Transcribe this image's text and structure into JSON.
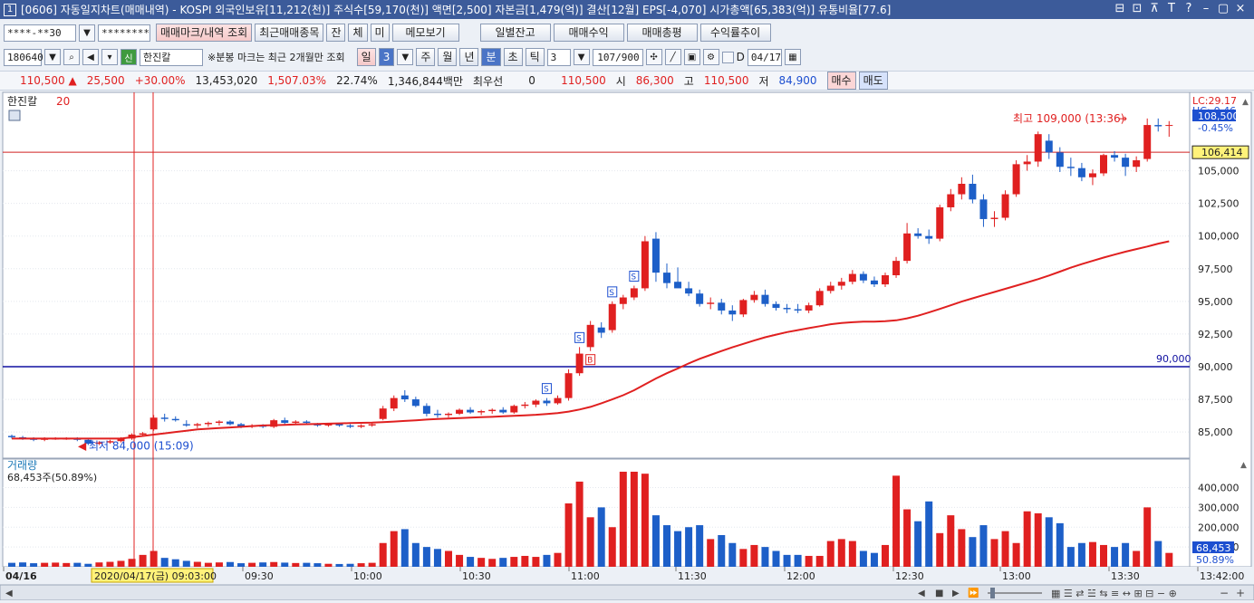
{
  "title": "[0606] 자동일지차트(매매내역) - KOSPI 외국인보유[11,212(천)] 주식수[59,170(천)] 액면[2,500] 자본금[1,479(억)] 결산[12월] EPS[-4,070] 시가총액[65,383(억)] 유통비율[77.6]",
  "window_num": "1",
  "window_controls": [
    "⊟",
    "⊡",
    "⊼",
    "T",
    "?",
    "–",
    "▢",
    "×"
  ],
  "toolbar1": {
    "account": "****-**30",
    "password": "********",
    "buttons": [
      "매매마크/내역 조회",
      "최근매매종목",
      "잔",
      "체",
      "미",
      "메모보기",
      "일별잔고",
      "매매수익",
      "매매총평",
      "수익률추이"
    ]
  },
  "toolbar2": {
    "code": "180640",
    "stock_badge": "신",
    "stock_name": "한진칼",
    "note": "※분봉 마크는 최근 2개월만 조회",
    "period_buttons": [
      "일",
      "3",
      "주",
      "월",
      "년",
      "분",
      "초",
      "틱"
    ],
    "minute_value": "3",
    "count": "107",
    "count_max": "/900",
    "date_label": "D",
    "date": "04/17"
  },
  "quote": {
    "price": "110,500",
    "change": "25,500",
    "change_pct": "+30.00%",
    "volume": "13,453,020",
    "vol_ratio": "1,507.03%",
    "turnover": "22.74%",
    "amount": "1,346,844백만",
    "best_label": "최우선",
    "best_qty": "0",
    "best_price": "110,500",
    "open_label": "시",
    "open": "86,300",
    "high_label": "고",
    "high": "110,500",
    "low_label": "저",
    "low": "84,900",
    "buy": "매수",
    "sell": "매도"
  },
  "chart_data": {
    "type": "candlestick",
    "stock_legend": "한진칼",
    "ma_period": "20",
    "lc": "LC:29.17",
    "hc": "HC:-0.46",
    "price_axis": [
      "105,000",
      "102,500",
      "100,000",
      "97,500",
      "95,000",
      "92,500",
      "90,000",
      "87,500",
      "85,000"
    ],
    "ylim": [
      83000,
      111000
    ],
    "current_price_label": "108,500",
    "current_pct_label": "-0.45%",
    "hline_red_label": "106,414",
    "hline_red_value": 106414,
    "hline_blue_label": "90,000",
    "hline_blue_value": 90000,
    "high_annot": "최고 109,000 (13:36)",
    "low_annot": "최저 84,000 (15:09)",
    "time_axis": [
      "04/16",
      "2020/04/17(금) 09:03:00",
      "09:30",
      "10:00",
      "10:30",
      "11:00",
      "11:30",
      "12:00",
      "12:30",
      "13:00",
      "13:30",
      "13:42:00"
    ],
    "volume_title": "거래량",
    "volume_sub": "68,453주(50.89%)",
    "volume_axis": [
      "400,000",
      "300,000",
      "200,000",
      "100,000"
    ],
    "volume_current_label": "68,453",
    "volume_pct_label": "50.89%",
    "trade_marks": [
      "S",
      "S",
      "S",
      "S",
      "B"
    ],
    "candles": [
      [
        84700,
        84800,
        84500,
        84600
      ],
      [
        84600,
        84700,
        84400,
        84500
      ],
      [
        84500,
        84600,
        84300,
        84400
      ],
      [
        84400,
        84600,
        84300,
        84500
      ],
      [
        84500,
        84600,
        84400,
        84500
      ],
      [
        84500,
        84600,
        84400,
        84500
      ],
      [
        84500,
        84600,
        84300,
        84400
      ],
      [
        84400,
        84500,
        84000,
        84100
      ],
      [
        84100,
        84300,
        84000,
        84200
      ],
      [
        84200,
        84400,
        84100,
        84300
      ],
      [
        84300,
        84600,
        84200,
        84500
      ],
      [
        84500,
        84900,
        84400,
        84800
      ],
      [
        84800,
        85000,
        84700,
        84900
      ],
      [
        85200,
        86300,
        85100,
        86100
      ],
      [
        86100,
        86400,
        85800,
        86000
      ],
      [
        86000,
        86200,
        85800,
        85900
      ],
      [
        85600,
        85900,
        85400,
        85500
      ],
      [
        85500,
        85700,
        85300,
        85600
      ],
      [
        85600,
        85800,
        85400,
        85700
      ],
      [
        85700,
        85900,
        85500,
        85800
      ],
      [
        85800,
        85900,
        85500,
        85600
      ],
      [
        85600,
        85700,
        85300,
        85400
      ],
      [
        85400,
        85600,
        85300,
        85500
      ],
      [
        85500,
        85600,
        85300,
        85400
      ],
      [
        85400,
        86000,
        85300,
        85900
      ],
      [
        85900,
        86100,
        85600,
        85700
      ],
      [
        85700,
        85900,
        85600,
        85800
      ],
      [
        85800,
        85900,
        85600,
        85700
      ],
      [
        85600,
        85700,
        85400,
        85500
      ],
      [
        85500,
        85700,
        85400,
        85600
      ],
      [
        85600,
        85700,
        85400,
        85500
      ],
      [
        85500,
        85600,
        85300,
        85400
      ],
      [
        85400,
        85600,
        85300,
        85500
      ],
      [
        85500,
        85700,
        85400,
        85600
      ],
      [
        86000,
        87000,
        85900,
        86800
      ],
      [
        86800,
        87800,
        86600,
        87600
      ],
      [
        87800,
        88200,
        87300,
        87500
      ],
      [
        87500,
        87700,
        86900,
        87000
      ],
      [
        87000,
        87200,
        86200,
        86400
      ],
      [
        86400,
        86700,
        86100,
        86300
      ],
      [
        86300,
        86500,
        86100,
        86400
      ],
      [
        86400,
        86800,
        86300,
        86700
      ],
      [
        86700,
        86900,
        86400,
        86500
      ],
      [
        86500,
        86700,
        86300,
        86600
      ],
      [
        86600,
        86800,
        86400,
        86700
      ],
      [
        86700,
        86900,
        86400,
        86500
      ],
      [
        86500,
        87100,
        86400,
        87000
      ],
      [
        87000,
        87300,
        86800,
        87100
      ],
      [
        87100,
        87500,
        86900,
        87400
      ],
      [
        87400,
        87600,
        87000,
        87200
      ],
      [
        87200,
        87800,
        87100,
        87600
      ],
      [
        87600,
        89800,
        87400,
        89500
      ],
      [
        89500,
        91500,
        89300,
        91000
      ],
      [
        91500,
        93500,
        91200,
        93200
      ],
      [
        93000,
        93400,
        92200,
        92600
      ],
      [
        92800,
        95000,
        92600,
        94800
      ],
      [
        94800,
        95500,
        94400,
        95300
      ],
      [
        95300,
        96200,
        95100,
        96000
      ],
      [
        96000,
        100000,
        95800,
        99600
      ],
      [
        99800,
        100300,
        96500,
        97200
      ],
      [
        97200,
        97900,
        96000,
        96400
      ],
      [
        96500,
        97600,
        96100,
        96000
      ],
      [
        96000,
        96500,
        95400,
        95600
      ],
      [
        95600,
        95900,
        94600,
        94800
      ],
      [
        94800,
        95300,
        94400,
        94900
      ],
      [
        94900,
        95200,
        94000,
        94300
      ],
      [
        94300,
        94700,
        93500,
        94000
      ],
      [
        94000,
        95200,
        93800,
        95100
      ],
      [
        95100,
        95800,
        94900,
        95500
      ],
      [
        95500,
        95900,
        94600,
        94800
      ],
      [
        94800,
        95000,
        94300,
        94500
      ],
      [
        94500,
        94800,
        94100,
        94400
      ],
      [
        94400,
        94800,
        94100,
        94300
      ],
      [
        94300,
        94900,
        94100,
        94700
      ],
      [
        94700,
        96000,
        94600,
        95800
      ],
      [
        95800,
        96500,
        95600,
        96200
      ],
      [
        96200,
        96800,
        95900,
        96500
      ],
      [
        96500,
        97400,
        96300,
        97100
      ],
      [
        97100,
        97300,
        96400,
        96600
      ],
      [
        96600,
        96900,
        96100,
        96300
      ],
      [
        96300,
        97200,
        96100,
        97000
      ],
      [
        97000,
        98400,
        96800,
        98100
      ],
      [
        98100,
        101000,
        97900,
        100200
      ],
      [
        100200,
        100600,
        99800,
        100000
      ],
      [
        100000,
        100500,
        99400,
        99800
      ],
      [
        99800,
        102400,
        99600,
        102200
      ],
      [
        102200,
        103600,
        101900,
        103200
      ],
      [
        103200,
        104500,
        102800,
        104000
      ],
      [
        104000,
        104700,
        102500,
        102800
      ],
      [
        102800,
        103200,
        100700,
        101300
      ],
      [
        101300,
        101900,
        100700,
        101400
      ],
      [
        101400,
        103500,
        101200,
        103200
      ],
      [
        103200,
        105800,
        103000,
        105500
      ],
      [
        105500,
        106200,
        105000,
        105700
      ],
      [
        105700,
        108000,
        105300,
        107800
      ],
      [
        107300,
        107800,
        105900,
        106400
      ],
      [
        106400,
        106800,
        104900,
        105300
      ],
      [
        105300,
        106000,
        104600,
        105200
      ],
      [
        105200,
        105600,
        104200,
        104500
      ],
      [
        104500,
        105100,
        103900,
        104800
      ],
      [
        104800,
        106300,
        104600,
        106200
      ],
      [
        106200,
        106500,
        105700,
        106000
      ],
      [
        106000,
        106300,
        104600,
        105300
      ],
      [
        105300,
        106100,
        104900,
        105800
      ],
      [
        105900,
        109000,
        105700,
        108500
      ],
      [
        108500,
        109000,
        108000,
        108400
      ],
      [
        108500,
        108800,
        107600,
        108500
      ]
    ],
    "ma": [
      84500,
      84500,
      84500,
      84500,
      84500,
      84500,
      84500,
      84500,
      84500,
      84500,
      84500,
      84600,
      84700,
      84800,
      84900,
      85000,
      85100,
      85200,
      85250,
      85300,
      85350,
      85400,
      85450,
      85500,
      85520,
      85550,
      85580,
      85600,
      85620,
      85640,
      85660,
      85680,
      85700,
      85720,
      85750,
      85800,
      85850,
      85900,
      85950,
      86000,
      86030,
      86060,
      86100,
      86130,
      86160,
      86200,
      86240,
      86280,
      86320,
      86380,
      86450,
      86560,
      86720,
      86920,
      87200,
      87500,
      87820,
      88200,
      88650,
      89100,
      89500,
      89870,
      90250,
      90600,
      90900,
      91200,
      91480,
      91750,
      92000,
      92250,
      92450,
      92650,
      92800,
      92950,
      93100,
      93250,
      93350,
      93400,
      93450,
      93450,
      93480,
      93550,
      93700,
      93900,
      94150,
      94420,
      94700,
      94980,
      95230,
      95480,
      95720,
      95960,
      96200,
      96450,
      96700,
      96980,
      97280,
      97580,
      97850,
      98100,
      98350,
      98580,
      98800,
      99000,
      99200,
      99420,
      99600
    ],
    "volumes": [
      20000,
      22000,
      18000,
      20000,
      21000,
      19000,
      20000,
      15000,
      22000,
      25000,
      30000,
      40000,
      60000,
      80000,
      45000,
      38000,
      30000,
      25000,
      20000,
      22000,
      24000,
      18000,
      20000,
      22000,
      24000,
      21000,
      19000,
      20000,
      18000,
      15000,
      14000,
      15000,
      18000,
      20000,
      120000,
      180000,
      190000,
      120000,
      100000,
      90000,
      80000,
      60000,
      50000,
      45000,
      40000,
      45000,
      50000,
      55000,
      50000,
      60000,
      70000,
      320000,
      430000,
      250000,
      300000,
      200000,
      480000,
      480000,
      470000,
      260000,
      210000,
      180000,
      200000,
      210000,
      140000,
      160000,
      120000,
      90000,
      110000,
      100000,
      80000,
      60000,
      60000,
      55000,
      55000,
      130000,
      140000,
      130000,
      80000,
      70000,
      110000,
      460000,
      290000,
      230000,
      330000,
      170000,
      260000,
      190000,
      150000,
      210000,
      140000,
      180000,
      120000,
      280000,
      270000,
      250000,
      220000,
      100000,
      120000,
      125000,
      110000,
      100000,
      120000,
      80000,
      300000,
      130000,
      70000
    ],
    "trade_marks_pos": [
      [
        49,
        "S"
      ],
      [
        52,
        "S"
      ],
      [
        55,
        "S"
      ],
      [
        57,
        "S"
      ],
      [
        53,
        "B"
      ]
    ]
  }
}
